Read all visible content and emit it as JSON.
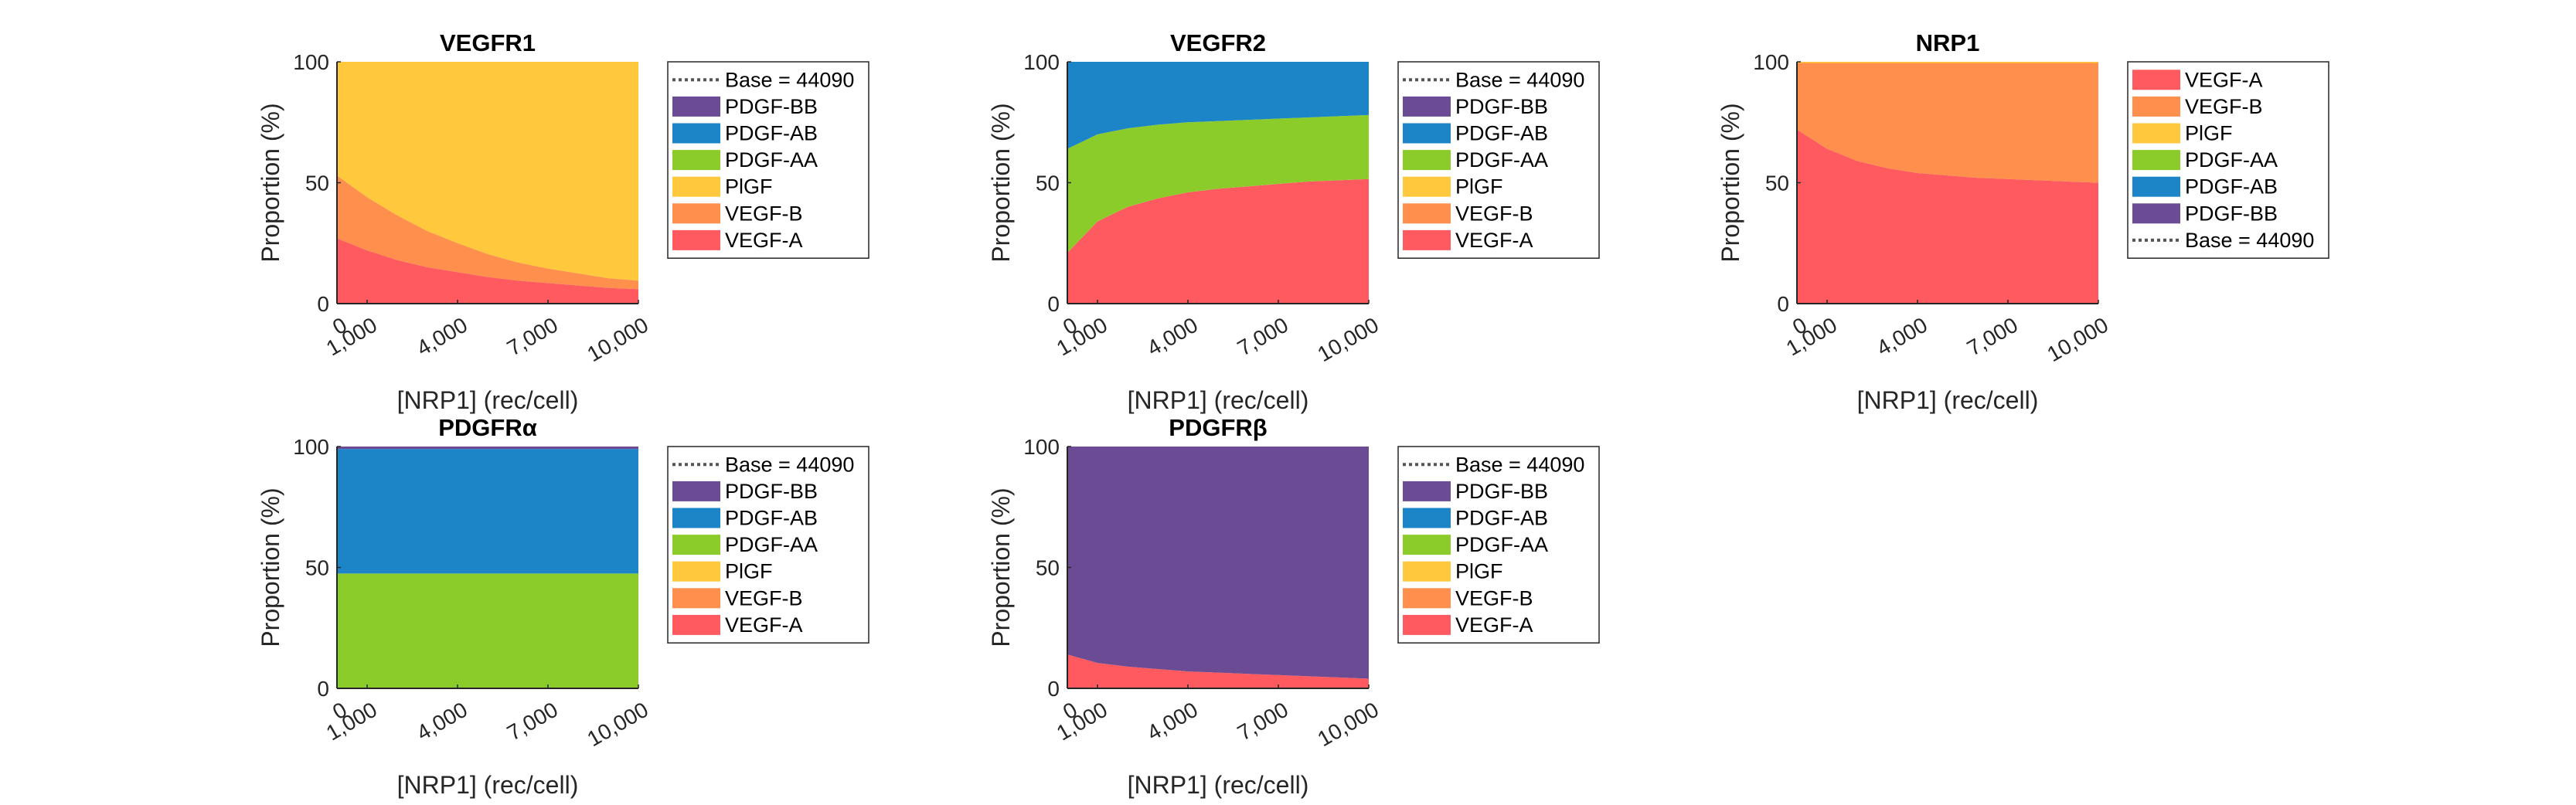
{
  "colors": {
    "VEGF-A": "#ff5a5f",
    "VEGF-B": "#ff8f4c",
    "PlGF": "#ffc83d",
    "PDGF-AA": "#8ccc2a",
    "PDGF-AB": "#1c85c8",
    "PDGF-BB": "#6b4c94",
    "base_line": "#555555",
    "axis": "#262626"
  },
  "chart_data": [
    {
      "type": "area",
      "stacked": true,
      "title": "VEGFR1",
      "xlabel": "[NRP1] (rec/cell)",
      "ylabel": "Proportion (%)",
      "xlim": [
        0,
        10000
      ],
      "ylim": [
        0,
        100
      ],
      "xticks": [
        0,
        1000,
        4000,
        7000,
        10000
      ],
      "xtick_labels": [
        "0",
        "1,000",
        "4,000",
        "7,000",
        "10,000"
      ],
      "yticks": [
        0,
        50,
        100
      ],
      "legend_location": "outside-right",
      "legend": [
        "Base = 44090",
        "PDGF-BB",
        "PDGF-AB",
        "PDGF-AA",
        "PlGF",
        "VEGF-B",
        "VEGF-A"
      ],
      "x": [
        0,
        1000,
        2000,
        3000,
        4000,
        5000,
        6000,
        7000,
        8000,
        9000,
        10000
      ],
      "series": [
        {
          "name": "VEGF-A",
          "values": [
            27,
            22,
            18,
            15,
            13,
            11,
            9.5,
            8.5,
            7.5,
            6.5,
            6
          ]
        },
        {
          "name": "VEGF-B",
          "values": [
            26,
            22,
            18.5,
            15,
            12,
            9.5,
            7.5,
            6,
            5,
            4,
            3.5
          ]
        },
        {
          "name": "PlGF",
          "values": [
            47,
            56,
            63.5,
            70,
            75,
            79.5,
            83,
            85.5,
            87.5,
            89.5,
            90.5
          ]
        },
        {
          "name": "PDGF-AA",
          "values": [
            0,
            0,
            0,
            0,
            0,
            0,
            0,
            0,
            0,
            0,
            0
          ]
        },
        {
          "name": "PDGF-AB",
          "values": [
            0,
            0,
            0,
            0,
            0,
            0,
            0,
            0,
            0,
            0,
            0
          ]
        },
        {
          "name": "PDGF-BB",
          "values": [
            0,
            0,
            0,
            0,
            0,
            0,
            0,
            0,
            0,
            0,
            0
          ]
        }
      ]
    },
    {
      "type": "area",
      "stacked": true,
      "title": "VEGFR2",
      "xlabel": "[NRP1] (rec/cell)",
      "ylabel": "Proportion (%)",
      "xlim": [
        0,
        10000
      ],
      "ylim": [
        0,
        100
      ],
      "xticks": [
        0,
        1000,
        4000,
        7000,
        10000
      ],
      "xtick_labels": [
        "0",
        "1,000",
        "4,000",
        "7,000",
        "10,000"
      ],
      "yticks": [
        0,
        50,
        100
      ],
      "legend_location": "outside-right",
      "legend": [
        "Base = 44090",
        "PDGF-BB",
        "PDGF-AB",
        "PDGF-AA",
        "PlGF",
        "VEGF-B",
        "VEGF-A"
      ],
      "x": [
        0,
        1000,
        2000,
        3000,
        4000,
        5000,
        6000,
        7000,
        8000,
        9000,
        10000
      ],
      "series": [
        {
          "name": "VEGF-A",
          "values": [
            21,
            34,
            40,
            43.5,
            46,
            47.5,
            48.5,
            49.5,
            50.5,
            51,
            51.5
          ]
        },
        {
          "name": "VEGF-B",
          "values": [
            0,
            0,
            0,
            0,
            0,
            0,
            0,
            0,
            0,
            0,
            0
          ]
        },
        {
          "name": "PlGF",
          "values": [
            0,
            0,
            0,
            0,
            0,
            0,
            0,
            0,
            0,
            0,
            0
          ]
        },
        {
          "name": "PDGF-AA",
          "values": [
            43,
            36,
            32.5,
            30.5,
            29,
            28,
            27.5,
            27,
            26.5,
            26.5,
            26.5
          ]
        },
        {
          "name": "PDGF-AB",
          "values": [
            36,
            30,
            27.5,
            26,
            25,
            24.5,
            24,
            23.5,
            23,
            22.5,
            22
          ]
        },
        {
          "name": "PDGF-BB",
          "values": [
            0,
            0,
            0,
            0,
            0,
            0,
            0,
            0,
            0,
            0,
            0
          ]
        }
      ]
    },
    {
      "type": "area",
      "stacked": true,
      "title": "NRP1",
      "xlabel": "[NRP1] (rec/cell)",
      "ylabel": "Proportion (%)",
      "xlim": [
        0,
        10000
      ],
      "ylim": [
        0,
        100
      ],
      "xticks": [
        0,
        1000,
        4000,
        7000,
        10000
      ],
      "xtick_labels": [
        "0",
        "1,000",
        "4,000",
        "7,000",
        "10,000"
      ],
      "yticks": [
        0,
        50,
        100
      ],
      "legend_location": "outside-right",
      "legend": [
        "VEGF-A",
        "VEGF-B",
        "PlGF",
        "PDGF-AA",
        "PDGF-AB",
        "PDGF-BB",
        "Base = 44090"
      ],
      "x": [
        0,
        1000,
        2000,
        3000,
        4000,
        5000,
        6000,
        7000,
        8000,
        9000,
        10000
      ],
      "series": [
        {
          "name": "VEGF-A",
          "values": [
            72,
            64,
            59,
            56,
            54,
            53,
            52,
            51.5,
            51,
            50.5,
            50
          ]
        },
        {
          "name": "VEGF-B",
          "values": [
            27.5,
            35.5,
            40.5,
            43.5,
            45.5,
            46.5,
            47.5,
            48,
            48.5,
            49,
            49.5
          ]
        },
        {
          "name": "PlGF",
          "values": [
            0.5,
            0.5,
            0.5,
            0.5,
            0.5,
            0.5,
            0.5,
            0.5,
            0.5,
            0.5,
            0.5
          ]
        },
        {
          "name": "PDGF-AA",
          "values": [
            0,
            0,
            0,
            0,
            0,
            0,
            0,
            0,
            0,
            0,
            0
          ]
        },
        {
          "name": "PDGF-AB",
          "values": [
            0,
            0,
            0,
            0,
            0,
            0,
            0,
            0,
            0,
            0,
            0
          ]
        },
        {
          "name": "PDGF-BB",
          "values": [
            0,
            0,
            0,
            0,
            0,
            0,
            0,
            0,
            0,
            0,
            0
          ]
        }
      ]
    },
    {
      "type": "area",
      "stacked": true,
      "title": "PDGFRα",
      "xlabel": "[NRP1] (rec/cell)",
      "ylabel": "Proportion (%)",
      "xlim": [
        0,
        10000
      ],
      "ylim": [
        0,
        100
      ],
      "xticks": [
        0,
        1000,
        4000,
        7000,
        10000
      ],
      "xtick_labels": [
        "0",
        "1,000",
        "4,000",
        "7,000",
        "10,000"
      ],
      "yticks": [
        0,
        50,
        100
      ],
      "legend_location": "outside-right",
      "legend": [
        "Base = 44090",
        "PDGF-BB",
        "PDGF-AB",
        "PDGF-AA",
        "PlGF",
        "VEGF-B",
        "VEGF-A"
      ],
      "x": [
        0,
        1000,
        2000,
        3000,
        4000,
        5000,
        6000,
        7000,
        8000,
        9000,
        10000
      ],
      "series": [
        {
          "name": "VEGF-A",
          "values": [
            0,
            0,
            0,
            0,
            0,
            0,
            0,
            0,
            0,
            0,
            0
          ]
        },
        {
          "name": "VEGF-B",
          "values": [
            0,
            0,
            0,
            0,
            0,
            0,
            0,
            0,
            0,
            0,
            0
          ]
        },
        {
          "name": "PlGF",
          "values": [
            0,
            0,
            0,
            0,
            0,
            0,
            0,
            0,
            0,
            0,
            0
          ]
        },
        {
          "name": "PDGF-AA",
          "values": [
            47.5,
            47.5,
            47.5,
            47.5,
            47.5,
            47.5,
            47.5,
            47.5,
            47.5,
            47.5,
            47.5
          ]
        },
        {
          "name": "PDGF-AB",
          "values": [
            51.5,
            51.5,
            51.5,
            51.5,
            51.5,
            51.5,
            51.5,
            51.5,
            51.5,
            51.5,
            51.5
          ]
        },
        {
          "name": "PDGF-BB",
          "values": [
            1,
            1,
            1,
            1,
            1,
            1,
            1,
            1,
            1,
            1,
            1
          ]
        }
      ]
    },
    {
      "type": "area",
      "stacked": true,
      "title": "PDGFRβ",
      "xlabel": "[NRP1] (rec/cell)",
      "ylabel": "Proportion (%)",
      "xlim": [
        0,
        10000
      ],
      "ylim": [
        0,
        100
      ],
      "xticks": [
        0,
        1000,
        4000,
        7000,
        10000
      ],
      "xtick_labels": [
        "0",
        "1,000",
        "4,000",
        "7,000",
        "10,000"
      ],
      "yticks": [
        0,
        50,
        100
      ],
      "legend_location": "outside-right",
      "legend": [
        "Base = 44090",
        "PDGF-BB",
        "PDGF-AB",
        "PDGF-AA",
        "PlGF",
        "VEGF-B",
        "VEGF-A"
      ],
      "x": [
        0,
        1000,
        2000,
        3000,
        4000,
        5000,
        6000,
        7000,
        8000,
        9000,
        10000
      ],
      "series": [
        {
          "name": "VEGF-A",
          "values": [
            14,
            10.5,
            9,
            8,
            7,
            6.5,
            6,
            5.5,
            5,
            4.5,
            4
          ]
        },
        {
          "name": "VEGF-B",
          "values": [
            0,
            0,
            0,
            0,
            0,
            0,
            0,
            0,
            0,
            0,
            0
          ]
        },
        {
          "name": "PlGF",
          "values": [
            0,
            0,
            0,
            0,
            0,
            0,
            0,
            0,
            0,
            0,
            0
          ]
        },
        {
          "name": "PDGF-AA",
          "values": [
            0,
            0,
            0,
            0,
            0,
            0,
            0,
            0,
            0,
            0,
            0
          ]
        },
        {
          "name": "PDGF-AB",
          "values": [
            0,
            0,
            0,
            0,
            0,
            0,
            0,
            0,
            0,
            0,
            0
          ]
        },
        {
          "name": "PDGF-BB",
          "values": [
            86,
            89.5,
            91,
            92,
            93,
            93.5,
            94,
            94.5,
            95,
            95.5,
            96
          ]
        }
      ]
    }
  ]
}
